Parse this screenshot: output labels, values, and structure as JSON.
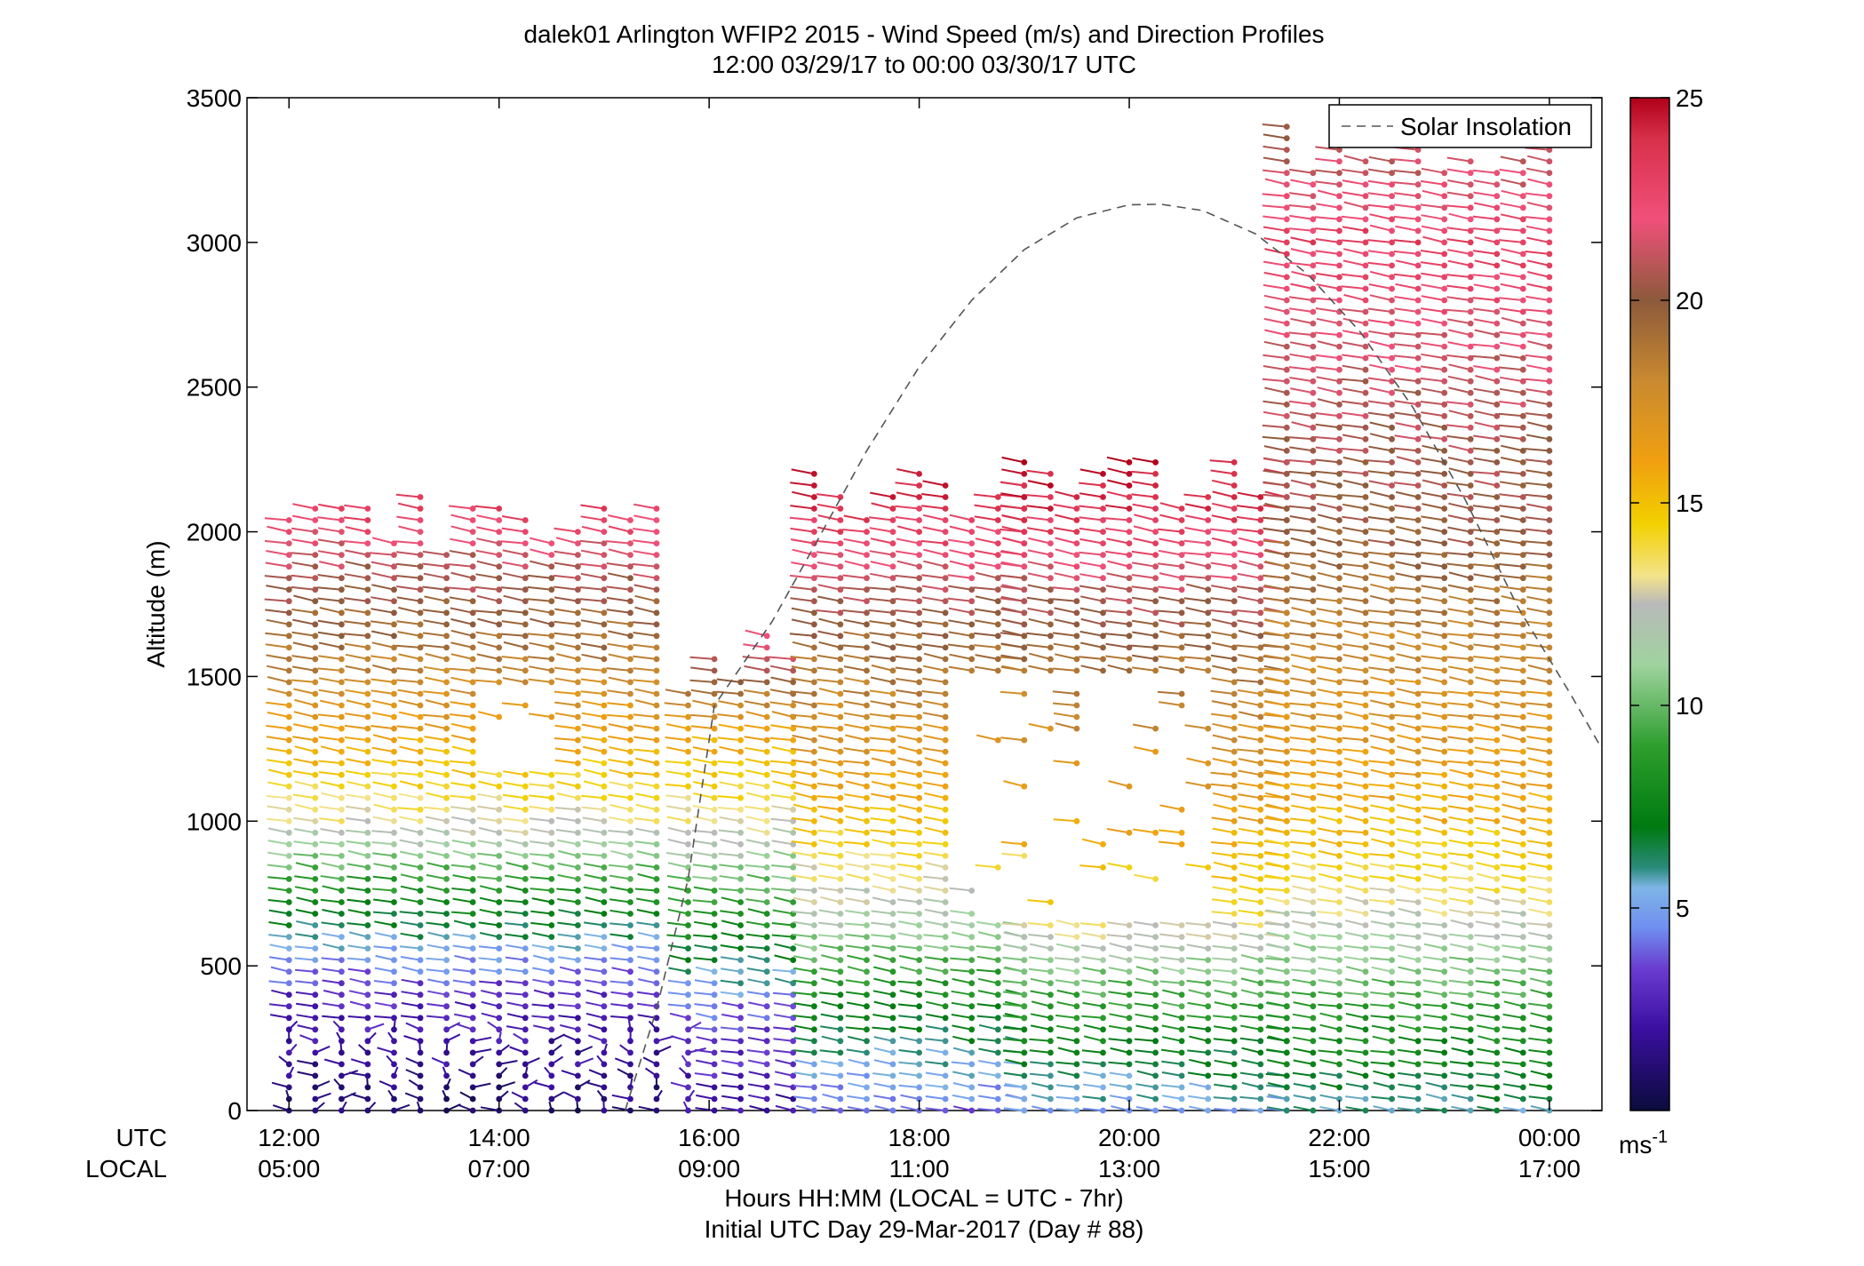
{
  "chart_data": {
    "type": "wind-barb-profile",
    "title": "dalek01 Arlington WFIP2 2015 - Wind Speed (m/s) and Direction Profiles",
    "subtitle": "12:00 03/29/17 to 00:00 03/30/17  UTC",
    "ylabel": "Altitude (m)",
    "xlabel": "Hours HH:MM  (LOCAL = UTC - 7hr)",
    "xlabel2": "Initial UTC Day 29-Mar-2017 (Day # 88)",
    "x_row_labels": [
      "UTC",
      "LOCAL"
    ],
    "ylim": [
      0,
      3500
    ],
    "yticks": [
      "0",
      "500",
      "1000",
      "1500",
      "2000",
      "2500",
      "3000",
      "3500"
    ],
    "xlim_hours_utc": [
      11.6,
      24.5
    ],
    "xticks_utc": [
      "12:00",
      "14:00",
      "16:00",
      "18:00",
      "20:00",
      "22:00",
      "00:00"
    ],
    "xticks_local": [
      "05:00",
      "07:00",
      "09:00",
      "11:00",
      "13:00",
      "15:00",
      "17:00"
    ],
    "legend": {
      "label": "Solar Insolation",
      "placement": "top-right",
      "style": "dashed grey line"
    },
    "colorbar": {
      "label": "ms",
      "label_sup": "-1",
      "range": [
        0,
        25
      ],
      "ticks": [
        "5",
        "10",
        "15",
        "20",
        "25"
      ],
      "stops": [
        {
          "v": 0,
          "color": "#0b0b3c"
        },
        {
          "v": 2,
          "color": "#3a0fa0"
        },
        {
          "v": 3.5,
          "color": "#6a3cd0"
        },
        {
          "v": 4.5,
          "color": "#6f8ef0"
        },
        {
          "v": 5.5,
          "color": "#7fb5e6"
        },
        {
          "v": 6,
          "color": "#2a8a7a"
        },
        {
          "v": 7,
          "color": "#007a10"
        },
        {
          "v": 9,
          "color": "#2e9e2e"
        },
        {
          "v": 11,
          "color": "#9fd39f"
        },
        {
          "v": 12.5,
          "color": "#b9b9b9"
        },
        {
          "v": 13.2,
          "color": "#f3e38a"
        },
        {
          "v": 14.5,
          "color": "#f2d000"
        },
        {
          "v": 16,
          "color": "#f0a010"
        },
        {
          "v": 18,
          "color": "#c98a30"
        },
        {
          "v": 20,
          "color": "#8c5a3c"
        },
        {
          "v": 22,
          "color": "#f0507a"
        },
        {
          "v": 24,
          "color": "#d8304a"
        },
        {
          "v": 25,
          "color": "#b0001a"
        }
      ]
    },
    "solar_insolation_curve": [
      [
        16.05,
        1400
      ],
      [
        16.6,
        1690
      ],
      [
        17.0,
        1950
      ],
      [
        17.5,
        2280
      ],
      [
        18.0,
        2570
      ],
      [
        18.5,
        2800
      ],
      [
        19.0,
        2975
      ],
      [
        19.5,
        3085
      ],
      [
        20.0,
        3130
      ],
      [
        20.3,
        3132
      ],
      [
        20.7,
        3110
      ],
      [
        21.2,
        3030
      ],
      [
        21.7,
        2890
      ],
      [
        22.2,
        2690
      ],
      [
        22.7,
        2430
      ],
      [
        23.2,
        2110
      ],
      [
        23.7,
        1740
      ],
      [
        24.2,
        1440
      ],
      [
        24.5,
        1250
      ]
    ],
    "solar_insolation_rise": [
      [
        15.2,
        0
      ],
      [
        15.5,
        350
      ],
      [
        15.8,
        800
      ],
      [
        16.05,
        1400
      ]
    ],
    "speed_profiles": [
      {
        "t_from": 12.0,
        "t_to": 15.7,
        "gate_top": 2150,
        "profile": [
          [
            0,
            1
          ],
          [
            400,
            3
          ],
          [
            600,
            6
          ],
          [
            800,
            9
          ],
          [
            1000,
            13
          ],
          [
            1300,
            16
          ],
          [
            1600,
            19
          ],
          [
            1900,
            21
          ],
          [
            2150,
            24
          ]
        ]
      },
      {
        "t_from": 15.8,
        "t_to": 17.0,
        "gate_top": 1650,
        "profile": [
          [
            0,
            2
          ],
          [
            350,
            4
          ],
          [
            550,
            7
          ],
          [
            800,
            10
          ],
          [
            1000,
            13
          ],
          [
            1300,
            16
          ],
          [
            1550,
            21
          ],
          [
            1650,
            23
          ]
        ]
      },
      {
        "t_from": 17.0,
        "t_to": 19.0,
        "gate_top": 2250,
        "profile": [
          [
            0,
            4
          ],
          [
            200,
            6
          ],
          [
            400,
            8
          ],
          [
            700,
            12
          ],
          [
            1000,
            15
          ],
          [
            1400,
            18
          ],
          [
            1700,
            20
          ],
          [
            2000,
            23
          ],
          [
            2250,
            25
          ]
        ]
      },
      {
        "t_from": 19.0,
        "t_to": 21.5,
        "gate_top": 2300,
        "profile": [
          [
            0,
            5
          ],
          [
            200,
            7
          ],
          [
            450,
            10
          ],
          [
            700,
            14
          ],
          [
            1000,
            16
          ],
          [
            1400,
            18
          ],
          [
            1800,
            21
          ],
          [
            2100,
            24
          ],
          [
            2300,
            25
          ]
        ]
      },
      {
        "t_from": 21.5,
        "t_to": 24.0,
        "gate_top": 3450,
        "profile": [
          [
            0,
            6
          ],
          [
            250,
            8
          ],
          [
            550,
            11
          ],
          [
            800,
            14
          ],
          [
            1100,
            16
          ],
          [
            1600,
            18
          ],
          [
            2000,
            20
          ],
          [
            2500,
            21
          ],
          [
            3000,
            23
          ],
          [
            3450,
            20
          ]
        ]
      }
    ]
  }
}
